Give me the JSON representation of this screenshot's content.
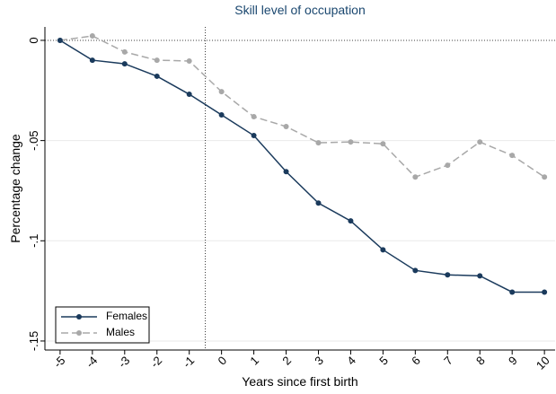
{
  "chart_data": {
    "type": "line",
    "title": "Skill level of occupation",
    "x_label": "Years since first birth",
    "y_label": "Percentage change",
    "x": [
      -5,
      -4,
      -3,
      -2,
      -1,
      0,
      1,
      2,
      3,
      4,
      5,
      6,
      7,
      8,
      9,
      10
    ],
    "series": [
      {
        "name": "Females",
        "color": "#1a3a5c",
        "dash": false,
        "values": [
          0,
          -0.0099,
          -0.0117,
          -0.0179,
          -0.0269,
          -0.0372,
          -0.0475,
          -0.0655,
          -0.0812,
          -0.0901,
          -0.1045,
          -0.1148,
          -0.117,
          -0.1175,
          -0.1256,
          -0.1256
        ]
      },
      {
        "name": "Males",
        "color": "#a8a8a8",
        "dash": true,
        "values": [
          0,
          0.0022,
          -0.0058,
          -0.0099,
          -0.0103,
          -0.0256,
          -0.0381,
          -0.043,
          -0.0511,
          -0.0507,
          -0.0516,
          -0.0682,
          -0.0623,
          -0.0507,
          -0.0574,
          -0.0682
        ]
      }
    ],
    "xlim": [
      -5.47,
      10.33
    ],
    "ylim": [
      -0.1545,
      0.0067
    ],
    "xticks": [
      -5,
      -4,
      -3,
      -2,
      -1,
      0,
      1,
      2,
      3,
      4,
      5,
      6,
      7,
      8,
      9,
      10
    ],
    "yticks": [
      0,
      {
        "value": -0.05,
        "label": "-.05"
      },
      {
        "value": -0.1,
        "label": "-.1"
      },
      {
        "value": -0.15,
        "label": "-.15"
      }
    ],
    "xline": -0.5,
    "yline": 0,
    "grid": true,
    "legend": "lower left"
  }
}
